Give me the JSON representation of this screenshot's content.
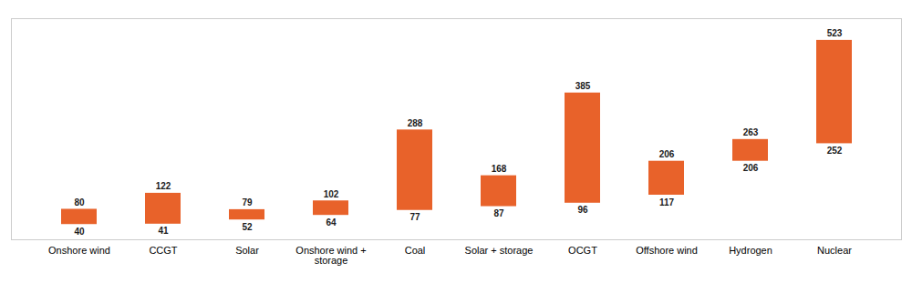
{
  "chart_data": {
    "type": "bar",
    "categories": [
      "Onshore wind",
      "CCGT",
      "Solar",
      "Onshore wind +\nstorage",
      "Coal",
      "Solar + storage",
      "OCGT",
      "Offshore wind",
      "Hydrogen",
      "Nuclear"
    ],
    "low": [
      40,
      41,
      52,
      64,
      77,
      87,
      96,
      117,
      206,
      252
    ],
    "high": [
      80,
      122,
      79,
      102,
      288,
      168,
      385,
      206,
      263,
      523
    ],
    "color": "#E8622A",
    "ylim": [
      0,
      580
    ],
    "data_labels": true,
    "tick_labels": "x",
    "grid": false
  }
}
